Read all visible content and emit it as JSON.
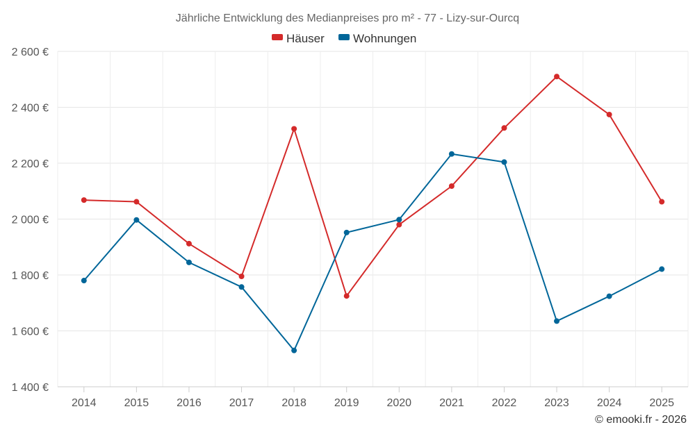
{
  "chart_data": {
    "type": "line",
    "title": "Jährliche Entwicklung des Medianpreises pro m² - 77 - Lizy-sur-Ourcq",
    "xlabel": "",
    "ylabel": "",
    "x": [
      "2014",
      "2015",
      "2016",
      "2017",
      "2018",
      "2019",
      "2020",
      "2021",
      "2022",
      "2023",
      "2024",
      "2025"
    ],
    "ylim": [
      1400,
      2600
    ],
    "yticks": [
      1400,
      1600,
      1800,
      2000,
      2200,
      2400,
      2600
    ],
    "ytick_labels": [
      "1 400 €",
      "1 600 €",
      "1 800 €",
      "2 000 €",
      "2 200 €",
      "2 400 €",
      "2 600 €"
    ],
    "grid": true,
    "legend_position": "top-center",
    "series": [
      {
        "name": "Häuser",
        "color": "#d42a2a",
        "values": [
          2068,
          2062,
          1912,
          1795,
          2323,
          1725,
          1980,
          2118,
          2326,
          2510,
          2374,
          2062
        ]
      },
      {
        "name": "Wohnungen",
        "color": "#006699",
        "values": [
          1780,
          1997,
          1845,
          1757,
          1530,
          1952,
          1998,
          2233,
          2204,
          1635,
          1724,
          1821
        ]
      }
    ],
    "credit": "© emooki.fr - 2026"
  }
}
